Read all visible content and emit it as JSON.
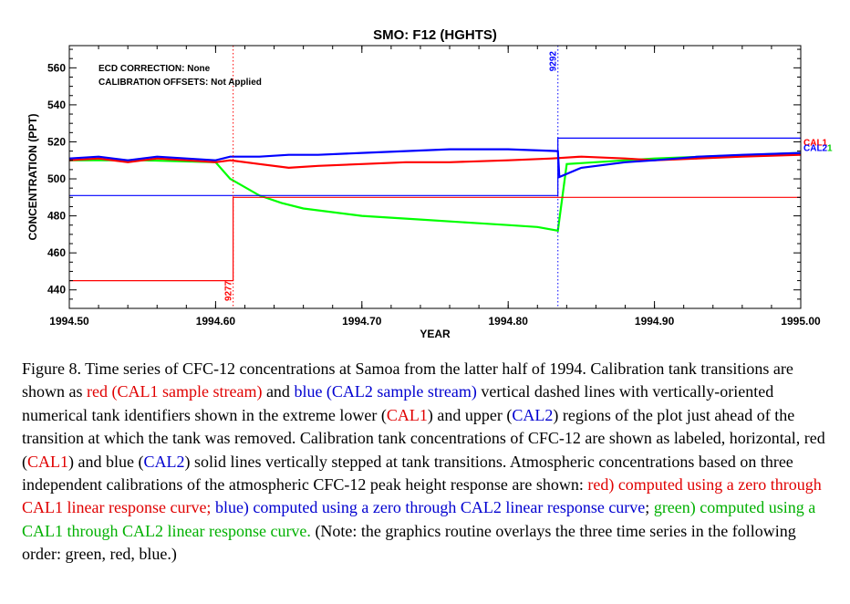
{
  "chart_data": {
    "type": "line",
    "title": "SMO:  F12 (HGHTS)",
    "xlabel": "YEAR",
    "ylabel": "CONCENTRATION (PPT)",
    "xlim": [
      1994.5,
      1995.0
    ],
    "ylim": [
      430,
      572
    ],
    "xticks": [
      1994.5,
      1994.6,
      1994.7,
      1994.8,
      1994.9,
      1995.0
    ],
    "xtick_labels": [
      "1994.50",
      "1994.60",
      "1994.70",
      "1994.80",
      "1994.90",
      "1995.00"
    ],
    "yticks": [
      440,
      460,
      480,
      500,
      520,
      540,
      560
    ],
    "ytick_labels": [
      "440",
      "460",
      "480",
      "500",
      "520",
      "540",
      "560"
    ],
    "annotations": [
      "ECD CORRECTION: None",
      "CALIBRATION OFFSETS: Not Applied"
    ],
    "tank_transitions": [
      {
        "id": "9277",
        "x": 1994.612,
        "color": "#ff0000",
        "stream": "CAL1",
        "position": "lower"
      },
      {
        "id": "9292",
        "x": 1994.834,
        "color": "#0000ff",
        "stream": "CAL2",
        "position": "upper"
      }
    ],
    "tank_lines": [
      {
        "name": "CAL1",
        "color": "#ff0000",
        "steps": [
          [
            1994.5,
            445
          ],
          [
            1994.612,
            445
          ],
          [
            1994.612,
            490
          ],
          [
            1995.0,
            490
          ]
        ]
      },
      {
        "name": "CAL2",
        "color": "#0000ff",
        "steps": [
          [
            1994.5,
            491
          ],
          [
            1994.834,
            491
          ],
          [
            1994.834,
            522
          ],
          [
            1995.0,
            522
          ]
        ]
      }
    ],
    "end_labels": [
      {
        "text": "CAL1",
        "color": "#ff0000",
        "y": 520
      },
      {
        "text": "CAL2",
        "color": "#0000ff",
        "y": 517
      },
      {
        "text": "1",
        "color": "#00d000",
        "y": 517
      }
    ],
    "series": [
      {
        "name": "red",
        "color": "#ff0000",
        "x": [
          1994.5,
          1994.52,
          1994.54,
          1994.56,
          1994.58,
          1994.6,
          1994.61,
          1994.63,
          1994.65,
          1994.67,
          1994.7,
          1994.73,
          1994.76,
          1994.8,
          1994.83,
          1994.85,
          1994.88,
          1994.9,
          1994.93,
          1994.96,
          1995.0
        ],
        "y": [
          510,
          511,
          509,
          511,
          510,
          509,
          510,
          508,
          506,
          507,
          508,
          509,
          509,
          510,
          511,
          512,
          511,
          510,
          511,
          512,
          513
        ]
      },
      {
        "name": "blue",
        "color": "#0000ff",
        "x": [
          1994.5,
          1994.52,
          1994.54,
          1994.56,
          1994.58,
          1994.6,
          1994.61,
          1994.63,
          1994.65,
          1994.67,
          1994.7,
          1994.73,
          1994.76,
          1994.8,
          1994.834,
          1994.835,
          1994.85,
          1994.88,
          1994.9,
          1994.93,
          1994.96,
          1995.0
        ],
        "y": [
          511,
          512,
          510,
          512,
          511,
          510,
          512,
          512,
          513,
          513,
          514,
          515,
          516,
          516,
          515,
          501,
          506,
          509,
          510,
          512,
          513,
          514
        ]
      },
      {
        "name": "green",
        "color": "#00ff00",
        "x": [
          1994.5,
          1994.55,
          1994.6,
          1994.61,
          1994.63,
          1994.645,
          1994.66,
          1994.7,
          1994.74,
          1994.78,
          1994.8,
          1994.82,
          1994.834,
          1994.84,
          1994.9,
          1995.0
        ],
        "y": [
          510,
          510,
          509,
          500,
          491,
          487,
          484,
          480,
          478,
          476,
          475,
          474,
          472,
          508,
          511,
          514
        ]
      }
    ]
  },
  "caption": {
    "p1": "Figure 8. Time series of CFC-12 concentrations at Samoa from the latter half of 1994. Calibration tank transitions are shown as ",
    "red_stream": "red (CAL1 sample stream)",
    "p2": " and ",
    "blue_stream": "blue (CAL2 sample stream)",
    "p3": " vertical dashed lines with vertically-oriented numerical tank identifiers shown in the extreme lower (",
    "cal1_a": "CAL1",
    "p4": ") and upper (",
    "cal2_a": "CAL2",
    "p5": ") regions of the plot just ahead of the transition at which the tank was removed. Calibration tank concentrations of CFC-12 are shown as labeled, horizontal, red (",
    "cal1_b": "CAL1",
    "p6": ") and blue (",
    "cal2_b": "CAL2",
    "p7": ") solid lines vertically stepped at tank transitions. Atmospheric concentrations based on three independent calibrations of the atmospheric CFC-12 peak height response are shown: ",
    "red_desc": "red) computed using a zero through CAL1 linear response curve;",
    "p8": " ",
    "blue_desc": "blue) computed using a zero through CAL2 linear response curve",
    "p9": "; ",
    "green_desc": "green) computed using a CAL1 through CAL2 linear response curve.",
    "p10": " (Note: the graphics routine overlays the three time series in the following order: green, red, blue.)"
  }
}
